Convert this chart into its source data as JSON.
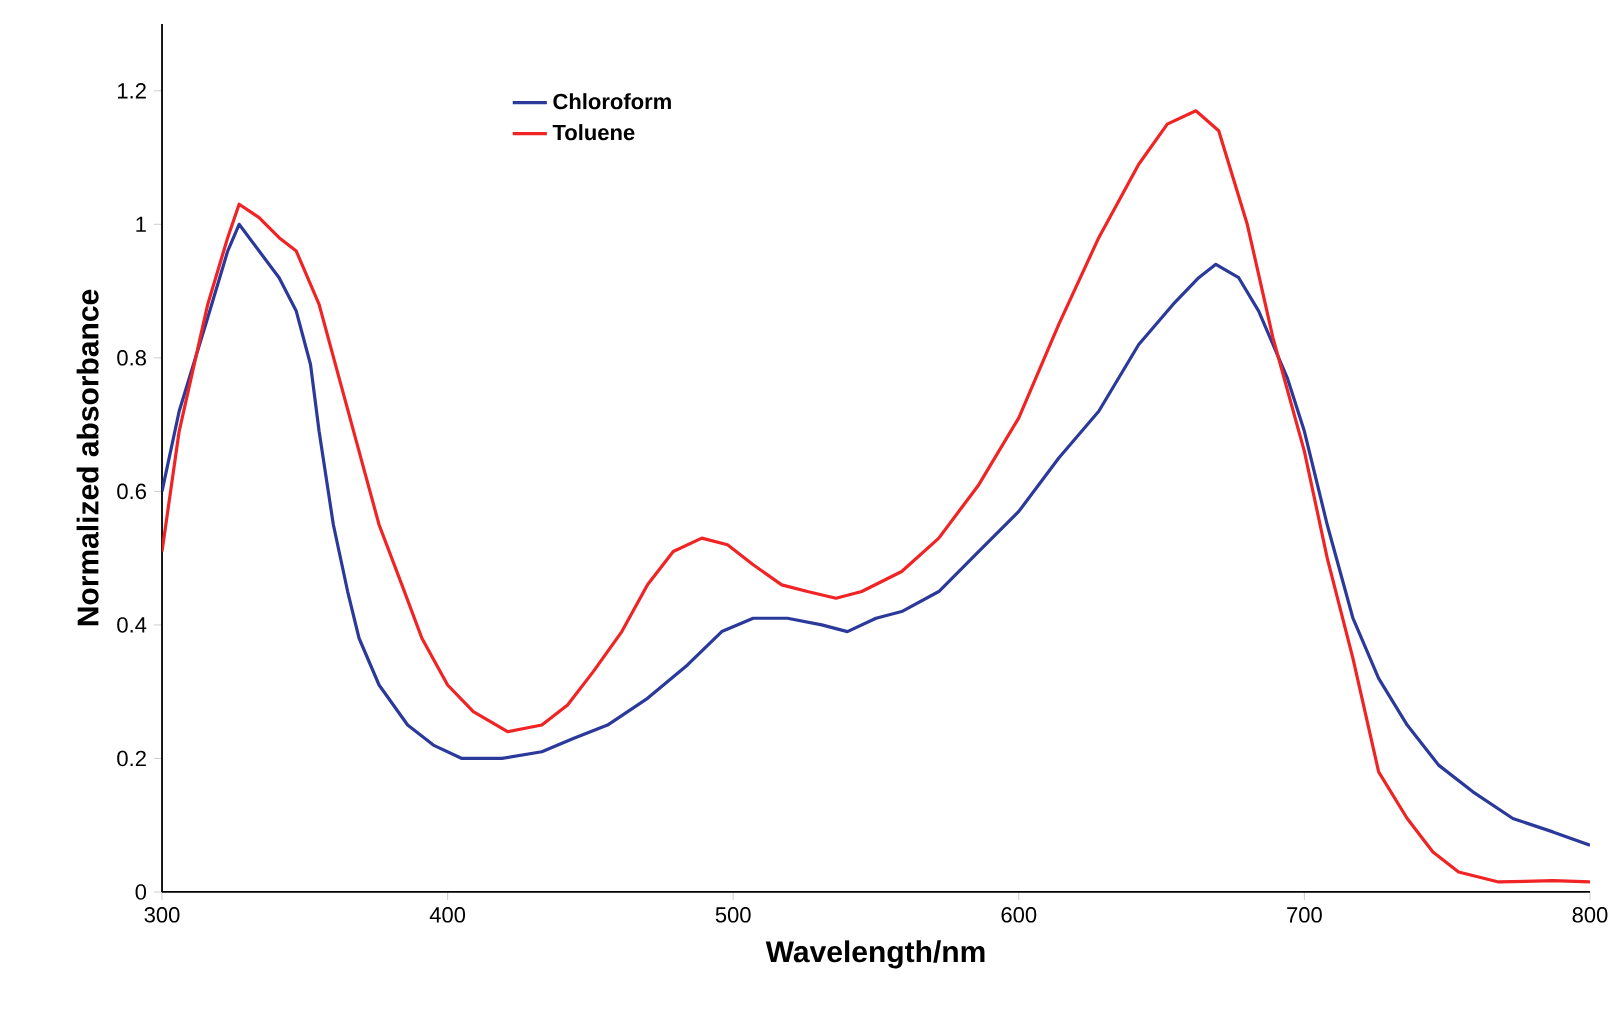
{
  "chart_data": {
    "type": "line",
    "xlabel": "Wavelength/nm",
    "ylabel": "Normalized absorbance",
    "xlim": [
      300,
      800
    ],
    "xticks": [
      300,
      400,
      500,
      600,
      700,
      800
    ],
    "ylim": [
      0,
      1.3
    ],
    "yticks": [
      0,
      {
        "value": 0.2,
        "label": "0.2"
      },
      {
        "value": 0.4,
        "label": "0.4"
      },
      {
        "value": 0.6,
        "label": "0.6"
      },
      {
        "value": 0.8,
        "label": "0.8"
      },
      1,
      {
        "value": 1.2,
        "label": "1.2"
      }
    ],
    "grid": false,
    "legend": "top left",
    "marker": "none",
    "line_style": "solid",
    "series": [
      {
        "name": "Chloroform",
        "color": "#2b3a9a",
        "x": [
          300,
          306,
          316,
          323,
          327,
          334,
          341,
          347,
          352,
          355,
          360,
          365,
          369,
          376,
          386,
          395,
          405,
          419,
          433,
          444,
          456,
          470,
          484,
          496,
          507,
          519,
          531,
          540,
          550,
          559,
          572,
          586,
          600,
          614,
          628,
          642,
          654,
          663,
          669,
          677,
          684,
          694,
          700,
          708,
          717,
          726,
          736,
          747,
          759,
          773,
          787,
          800
        ],
        "values": [
          0.6,
          0.72,
          0.86,
          0.96,
          1.0,
          0.96,
          0.92,
          0.87,
          0.79,
          0.69,
          0.55,
          0.45,
          0.38,
          0.31,
          0.25,
          0.22,
          0.2,
          0.2,
          0.21,
          0.23,
          0.25,
          0.29,
          0.34,
          0.39,
          0.41,
          0.41,
          0.4,
          0.39,
          0.41,
          0.42,
          0.45,
          0.51,
          0.57,
          0.65,
          0.72,
          0.82,
          0.88,
          0.92,
          0.94,
          0.92,
          0.87,
          0.77,
          0.69,
          0.55,
          0.41,
          0.32,
          0.25,
          0.19,
          0.15,
          0.11,
          0.09,
          0.07
        ]
      },
      {
        "name": "Toluene",
        "color": "#f02424",
        "x": [
          300,
          306,
          316,
          323,
          327,
          334,
          341,
          347,
          355,
          362,
          369,
          376,
          384,
          391,
          400,
          409,
          421,
          433,
          442,
          451,
          461,
          470,
          479,
          489,
          498,
          507,
          517,
          526,
          536,
          545,
          559,
          572,
          586,
          600,
          614,
          628,
          642,
          652,
          662,
          670,
          680,
          689,
          700,
          708,
          717,
          726,
          736,
          745,
          754,
          768,
          787,
          800
        ],
        "values": [
          0.51,
          0.69,
          0.88,
          0.98,
          1.03,
          1.01,
          0.98,
          0.96,
          0.88,
          0.77,
          0.66,
          0.55,
          0.46,
          0.38,
          0.31,
          0.27,
          0.24,
          0.25,
          0.28,
          0.33,
          0.39,
          0.46,
          0.51,
          0.53,
          0.52,
          0.49,
          0.46,
          0.45,
          0.44,
          0.45,
          0.48,
          0.53,
          0.61,
          0.71,
          0.85,
          0.98,
          1.09,
          1.15,
          1.17,
          1.14,
          1.0,
          0.83,
          0.66,
          0.5,
          0.35,
          0.18,
          0.11,
          0.06,
          0.03,
          0.015,
          0.017,
          0.015
        ]
      }
    ]
  }
}
